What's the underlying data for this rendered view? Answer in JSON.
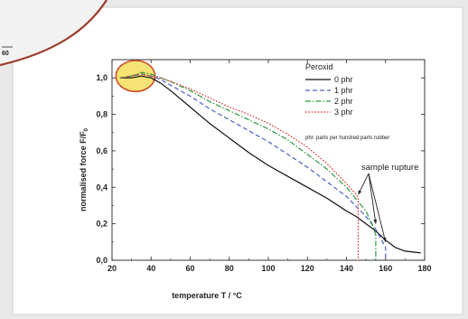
{
  "page": {
    "corner_page_number": "60"
  },
  "colors": {
    "page_background": "#e9e9e9",
    "card": "#ffffff",
    "curl_edge": "#9b3a2a",
    "highlight_fill": "#f3df5a",
    "highlight_stroke": "#d04a2a"
  },
  "chart_data": {
    "type": "line",
    "title": "",
    "xlabel": "temperature T / °C",
    "ylabel": "normalised force F/F",
    "ylabel_subscript": "0",
    "xlim": [
      20,
      180
    ],
    "ylim": [
      0,
      1.1
    ],
    "xticks": [
      20,
      40,
      60,
      80,
      100,
      120,
      140,
      160,
      180
    ],
    "xtick_labels": [
      "20",
      "40",
      "60",
      "80",
      "100",
      "120",
      "140",
      "160",
      "180"
    ],
    "yticks": [
      0,
      0.2,
      0.4,
      0.6,
      0.8,
      1.0
    ],
    "ytick_labels": [
      "0,0",
      "0,2",
      "0,4",
      "0,6",
      "0,8",
      "1,0"
    ],
    "grid": false,
    "legend": {
      "title": "Peroxid",
      "placement": "top-right",
      "note": "phr: parts per hundred parts rubber"
    },
    "series": [
      {
        "name": "0 phr",
        "color": "#111111",
        "dash": "solid",
        "x": [
          24,
          30,
          35,
          40,
          45,
          50,
          60,
          70,
          80,
          90,
          100,
          110,
          120,
          130,
          140,
          145,
          150,
          155,
          160,
          165,
          170,
          178
        ],
        "y": [
          1.0,
          1.0,
          1.01,
          1.0,
          0.97,
          0.93,
          0.84,
          0.75,
          0.67,
          0.59,
          0.52,
          0.46,
          0.4,
          0.34,
          0.27,
          0.24,
          0.2,
          0.16,
          0.11,
          0.07,
          0.05,
          0.04
        ]
      },
      {
        "name": "1 phr",
        "color": "#4a60c8",
        "dash": "dashed",
        "x": [
          24,
          30,
          35,
          40,
          45,
          50,
          60,
          70,
          80,
          90,
          100,
          110,
          120,
          130,
          140,
          150,
          155,
          158,
          160,
          160
        ],
        "y": [
          1.0,
          1.01,
          1.02,
          1.01,
          0.99,
          0.96,
          0.9,
          0.83,
          0.77,
          0.71,
          0.65,
          0.58,
          0.51,
          0.43,
          0.35,
          0.24,
          0.17,
          0.11,
          0.07,
          0.0
        ]
      },
      {
        "name": "2 phr",
        "color": "#2a9a3a",
        "dash": "dashdot",
        "x": [
          24,
          30,
          35,
          40,
          45,
          50,
          60,
          70,
          80,
          90,
          100,
          110,
          120,
          130,
          140,
          150,
          153,
          155,
          155
        ],
        "y": [
          1.0,
          1.01,
          1.03,
          1.02,
          1.0,
          0.98,
          0.93,
          0.87,
          0.82,
          0.77,
          0.72,
          0.66,
          0.58,
          0.5,
          0.4,
          0.27,
          0.2,
          0.14,
          0.0
        ]
      },
      {
        "name": "3 phr",
        "color": "#e03030",
        "dash": "dotted",
        "x": [
          24,
          30,
          35,
          40,
          45,
          50,
          60,
          70,
          80,
          90,
          100,
          110,
          120,
          130,
          140,
          145,
          146,
          146
        ],
        "y": [
          1.0,
          1.01,
          1.02,
          1.01,
          1.0,
          0.98,
          0.94,
          0.89,
          0.84,
          0.8,
          0.75,
          0.69,
          0.62,
          0.53,
          0.42,
          0.36,
          0.34,
          0.0
        ]
      }
    ],
    "annotations": [
      {
        "text": "sample rupture",
        "placement": "right, above rupture points",
        "arrow_targets": [
          [
            146,
            0.36
          ],
          [
            155,
            0.2
          ],
          [
            160,
            0.1
          ]
        ]
      },
      {
        "text": "",
        "shape": "ellipse highlight",
        "center": [
          32,
          1.01
        ],
        "radius": [
          10,
          0.085
        ]
      }
    ]
  }
}
